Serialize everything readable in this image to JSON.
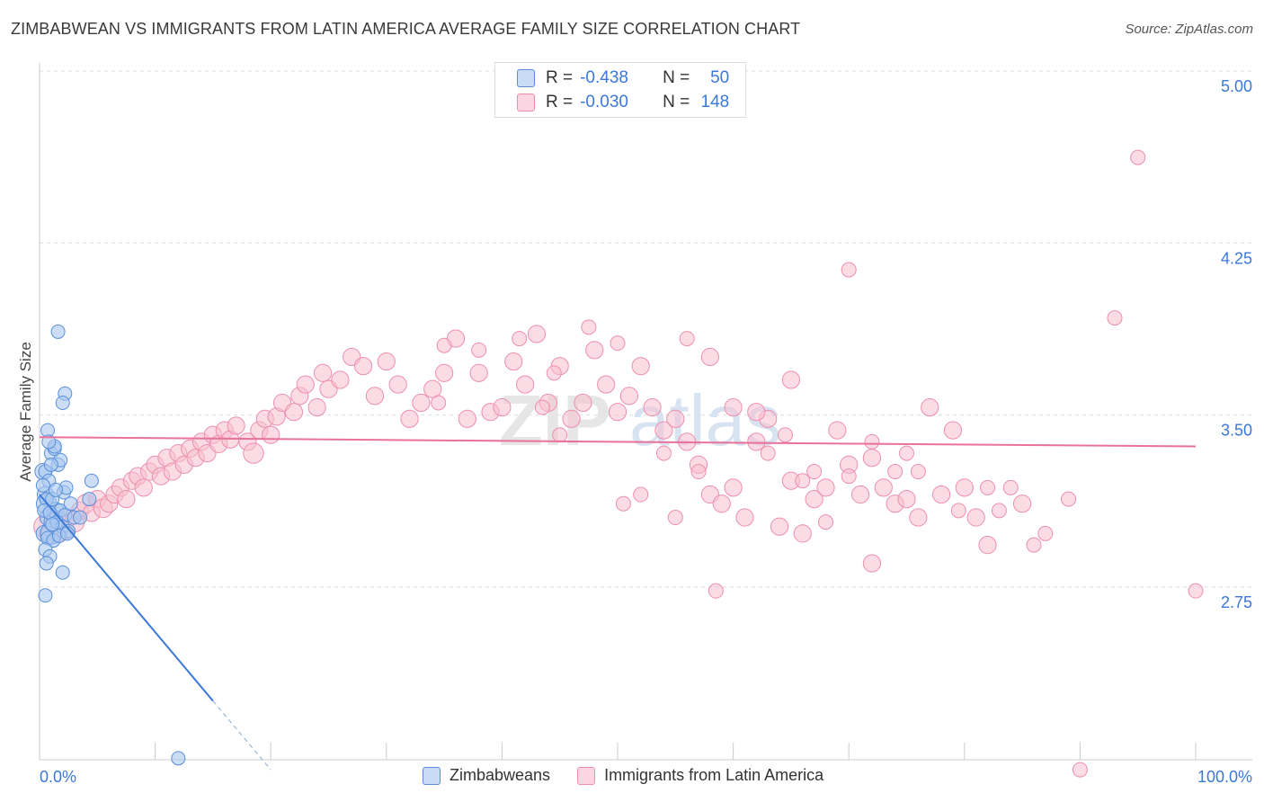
{
  "header": {
    "title": "ZIMBABWEAN VS IMMIGRANTS FROM LATIN AMERICA AVERAGE FAMILY SIZE CORRELATION CHART",
    "source": "Source: ZipAtlas.com"
  },
  "legend": {
    "series1": {
      "r_label": "R =",
      "r_value": "-0.438",
      "n_label": "N =",
      "n_value": "50"
    },
    "series2": {
      "r_label": "R =",
      "r_value": "-0.030",
      "n_label": "N =",
      "n_value": "148"
    }
  },
  "colors": {
    "blue_fill": "#a9c8f0",
    "blue_stroke": "#5a8fd8",
    "blue_line": "#3b78d8",
    "pink_fill": "#f7bfd0",
    "pink_stroke": "#ec8fae",
    "pink_line": "#e8729a",
    "tick_text": "#3b78d8"
  },
  "watermark": {
    "part1": "ZIP",
    "part2": "atlas"
  },
  "chart_data": {
    "type": "scatter",
    "title": "ZIMBABWEAN VS IMMIGRANTS FROM LATIN AMERICA AVERAGE FAMILY SIZE CORRELATION CHART",
    "xlabel": "",
    "ylabel": "Average Family Size",
    "xlim": [
      0,
      100
    ],
    "ylim": [
      2.0,
      5.1
    ],
    "x_tick_labels": [
      "0.0%",
      "100.0%"
    ],
    "y_ticks": [
      2.75,
      3.5,
      4.25,
      5.0
    ],
    "y_tick_labels": [
      "2.75",
      "3.50",
      "4.25",
      "5.00"
    ],
    "legend_position": "top-center",
    "series": [
      {
        "name": "Zimbabweans",
        "r": -0.438,
        "n": 50,
        "trend": {
          "x0": 0,
          "y0": 3.22,
          "x1": 15,
          "y1": 2.32,
          "dashed_to_x": 20,
          "dashed_to_y": 2.02
        },
        "points": [
          {
            "x": 0.3,
            "y": 3.32,
            "s": 1.2
          },
          {
            "x": 0.5,
            "y": 3.22,
            "s": 1.2
          },
          {
            "x": 0.6,
            "y": 3.18,
            "s": 1.5
          },
          {
            "x": 0.8,
            "y": 3.12,
            "s": 1.3
          },
          {
            "x": 0.4,
            "y": 3.05,
            "s": 1.2
          },
          {
            "x": 1.0,
            "y": 3.05,
            "s": 1.6
          },
          {
            "x": 1.2,
            "y": 3.1,
            "s": 1.4
          },
          {
            "x": 1.4,
            "y": 3.15,
            "s": 1.2
          },
          {
            "x": 0.7,
            "y": 3.5,
            "s": 1.0
          },
          {
            "x": 1.0,
            "y": 3.4,
            "s": 1.0
          },
          {
            "x": 1.3,
            "y": 3.42,
            "s": 1.0
          },
          {
            "x": 1.6,
            "y": 3.35,
            "s": 1.0
          },
          {
            "x": 0.5,
            "y": 3.32,
            "s": 1.0
          },
          {
            "x": 0.8,
            "y": 3.28,
            "s": 1.0
          },
          {
            "x": 0.3,
            "y": 3.26,
            "s": 1.0
          },
          {
            "x": 2.1,
            "y": 3.23,
            "s": 1.0
          },
          {
            "x": 0.6,
            "y": 3.2,
            "s": 1.0
          },
          {
            "x": 1.1,
            "y": 3.2,
            "s": 1.0
          },
          {
            "x": 1.8,
            "y": 3.15,
            "s": 1.0
          },
          {
            "x": 2.2,
            "y": 3.13,
            "s": 1.0
          },
          {
            "x": 0.4,
            "y": 3.15,
            "s": 1.0
          },
          {
            "x": 0.9,
            "y": 3.14,
            "s": 1.0
          },
          {
            "x": 1.5,
            "y": 3.1,
            "s": 1.0
          },
          {
            "x": 2.0,
            "y": 3.08,
            "s": 1.0
          },
          {
            "x": 2.5,
            "y": 3.06,
            "s": 1.0
          },
          {
            "x": 0.7,
            "y": 3.03,
            "s": 1.0
          },
          {
            "x": 1.2,
            "y": 3.02,
            "s": 1.0
          },
          {
            "x": 1.7,
            "y": 3.04,
            "s": 1.0
          },
          {
            "x": 2.4,
            "y": 3.05,
            "s": 1.0
          },
          {
            "x": 3.0,
            "y": 3.12,
            "s": 1.0
          },
          {
            "x": 0.5,
            "y": 2.98,
            "s": 1.0
          },
          {
            "x": 0.9,
            "y": 2.95,
            "s": 1.0
          },
          {
            "x": 0.6,
            "y": 2.92,
            "s": 1.0
          },
          {
            "x": 2.0,
            "y": 2.88,
            "s": 1.0
          },
          {
            "x": 0.5,
            "y": 2.78,
            "s": 1.0
          },
          {
            "x": 1.6,
            "y": 3.93,
            "s": 1.0
          },
          {
            "x": 2.2,
            "y": 3.66,
            "s": 1.0
          },
          {
            "x": 2.0,
            "y": 3.62,
            "s": 1.0
          },
          {
            "x": 1.3,
            "y": 3.43,
            "s": 1.0
          },
          {
            "x": 1.8,
            "y": 3.37,
            "s": 1.0
          },
          {
            "x": 2.3,
            "y": 3.25,
            "s": 1.0
          },
          {
            "x": 4.5,
            "y": 3.28,
            "s": 1.0
          },
          {
            "x": 4.3,
            "y": 3.2,
            "s": 1.0
          },
          {
            "x": 3.5,
            "y": 3.12,
            "s": 1.0
          },
          {
            "x": 1.0,
            "y": 3.35,
            "s": 1.0
          },
          {
            "x": 0.8,
            "y": 3.45,
            "s": 1.0
          },
          {
            "x": 1.4,
            "y": 3.24,
            "s": 1.0
          },
          {
            "x": 2.7,
            "y": 3.18,
            "s": 1.0
          },
          {
            "x": 12.0,
            "y": 2.07,
            "s": 1.0
          },
          {
            "x": 1.1,
            "y": 3.09,
            "s": 1.0
          }
        ]
      },
      {
        "name": "Immigrants from Latin America",
        "r": -0.03,
        "n": 148,
        "trend": {
          "x0": 0,
          "y0": 3.47,
          "x1": 100,
          "y1": 3.43
        },
        "points": [
          {
            "x": 0.5,
            "y": 3.08,
            "s": 1.6
          },
          {
            "x": 1.0,
            "y": 3.05,
            "s": 1.4
          },
          {
            "x": 1.5,
            "y": 3.1,
            "s": 1.5
          },
          {
            "x": 2.0,
            "y": 3.06,
            "s": 1.3
          },
          {
            "x": 2.5,
            "y": 3.12,
            "s": 1.2
          },
          {
            "x": 3.0,
            "y": 3.1,
            "s": 1.4
          },
          {
            "x": 3.5,
            "y": 3.15,
            "s": 1.2
          },
          {
            "x": 4.0,
            "y": 3.18,
            "s": 1.3
          },
          {
            "x": 4.5,
            "y": 3.14,
            "s": 1.2
          },
          {
            "x": 5.0,
            "y": 3.2,
            "s": 1.2
          },
          {
            "x": 5.5,
            "y": 3.16,
            "s": 1.3
          },
          {
            "x": 6.0,
            "y": 3.18,
            "s": 1.2
          },
          {
            "x": 6.5,
            "y": 3.22,
            "s": 1.2
          },
          {
            "x": 7.0,
            "y": 3.25,
            "s": 1.2
          },
          {
            "x": 7.5,
            "y": 3.2,
            "s": 1.2
          },
          {
            "x": 8.0,
            "y": 3.28,
            "s": 1.2
          },
          {
            "x": 8.5,
            "y": 3.3,
            "s": 1.2
          },
          {
            "x": 9.0,
            "y": 3.25,
            "s": 1.2
          },
          {
            "x": 9.5,
            "y": 3.32,
            "s": 1.2
          },
          {
            "x": 10.0,
            "y": 3.35,
            "s": 1.2
          },
          {
            "x": 10.5,
            "y": 3.3,
            "s": 1.2
          },
          {
            "x": 11.0,
            "y": 3.38,
            "s": 1.2
          },
          {
            "x": 11.5,
            "y": 3.32,
            "s": 1.2
          },
          {
            "x": 12.0,
            "y": 3.4,
            "s": 1.2
          },
          {
            "x": 12.5,
            "y": 3.35,
            "s": 1.2
          },
          {
            "x": 13.0,
            "y": 3.42,
            "s": 1.2
          },
          {
            "x": 13.5,
            "y": 3.38,
            "s": 1.2
          },
          {
            "x": 14.0,
            "y": 3.45,
            "s": 1.2
          },
          {
            "x": 14.5,
            "y": 3.4,
            "s": 1.2
          },
          {
            "x": 15.0,
            "y": 3.48,
            "s": 1.2
          },
          {
            "x": 15.5,
            "y": 3.44,
            "s": 1.2
          },
          {
            "x": 16.0,
            "y": 3.5,
            "s": 1.2
          },
          {
            "x": 16.5,
            "y": 3.46,
            "s": 1.2
          },
          {
            "x": 17.0,
            "y": 3.52,
            "s": 1.2
          },
          {
            "x": 18.0,
            "y": 3.45,
            "s": 1.2
          },
          {
            "x": 18.5,
            "y": 3.4,
            "s": 1.4
          },
          {
            "x": 19.0,
            "y": 3.5,
            "s": 1.2
          },
          {
            "x": 19.5,
            "y": 3.55,
            "s": 1.2
          },
          {
            "x": 20.0,
            "y": 3.48,
            "s": 1.2
          },
          {
            "x": 20.5,
            "y": 3.56,
            "s": 1.2
          },
          {
            "x": 21.0,
            "y": 3.62,
            "s": 1.2
          },
          {
            "x": 22.0,
            "y": 3.58,
            "s": 1.2
          },
          {
            "x": 22.5,
            "y": 3.65,
            "s": 1.2
          },
          {
            "x": 23.0,
            "y": 3.7,
            "s": 1.2
          },
          {
            "x": 24.0,
            "y": 3.6,
            "s": 1.2
          },
          {
            "x": 24.5,
            "y": 3.75,
            "s": 1.2
          },
          {
            "x": 25.0,
            "y": 3.68,
            "s": 1.2
          },
          {
            "x": 26.0,
            "y": 3.72,
            "s": 1.2
          },
          {
            "x": 27.0,
            "y": 3.82,
            "s": 1.2
          },
          {
            "x": 28.0,
            "y": 3.78,
            "s": 1.2
          },
          {
            "x": 29.0,
            "y": 3.65,
            "s": 1.2
          },
          {
            "x": 30.0,
            "y": 3.8,
            "s": 1.2
          },
          {
            "x": 31.0,
            "y": 3.7,
            "s": 1.2
          },
          {
            "x": 32.0,
            "y": 3.55,
            "s": 1.2
          },
          {
            "x": 33.0,
            "y": 3.62,
            "s": 1.2
          },
          {
            "x": 34.0,
            "y": 3.68,
            "s": 1.2
          },
          {
            "x": 35.0,
            "y": 3.75,
            "s": 1.2
          },
          {
            "x": 36.0,
            "y": 3.9,
            "s": 1.2
          },
          {
            "x": 37.0,
            "y": 3.55,
            "s": 1.2
          },
          {
            "x": 38.0,
            "y": 3.75,
            "s": 1.2
          },
          {
            "x": 39.0,
            "y": 3.58,
            "s": 1.2
          },
          {
            "x": 40.0,
            "y": 3.6,
            "s": 1.2
          },
          {
            "x": 41.0,
            "y": 3.8,
            "s": 1.2
          },
          {
            "x": 42.0,
            "y": 3.7,
            "s": 1.2
          },
          {
            "x": 43.0,
            "y": 3.92,
            "s": 1.2
          },
          {
            "x": 44.0,
            "y": 3.62,
            "s": 1.2
          },
          {
            "x": 45.0,
            "y": 3.78,
            "s": 1.2
          },
          {
            "x": 46.0,
            "y": 3.55,
            "s": 1.2
          },
          {
            "x": 47.0,
            "y": 3.62,
            "s": 1.2
          },
          {
            "x": 48.0,
            "y": 3.85,
            "s": 1.2
          },
          {
            "x": 49.0,
            "y": 3.7,
            "s": 1.2
          },
          {
            "x": 50.0,
            "y": 3.58,
            "s": 1.2
          },
          {
            "x": 51.0,
            "y": 3.65,
            "s": 1.2
          },
          {
            "x": 52.0,
            "y": 3.78,
            "s": 1.2
          },
          {
            "x": 53.0,
            "y": 3.6,
            "s": 1.2
          },
          {
            "x": 54.0,
            "y": 3.5,
            "s": 1.2
          },
          {
            "x": 55.0,
            "y": 3.55,
            "s": 1.2
          },
          {
            "x": 56.0,
            "y": 3.45,
            "s": 1.2
          },
          {
            "x": 57.0,
            "y": 3.35,
            "s": 1.2
          },
          {
            "x": 58.0,
            "y": 3.22,
            "s": 1.2
          },
          {
            "x": 59.0,
            "y": 3.18,
            "s": 1.2
          },
          {
            "x": 60.0,
            "y": 3.25,
            "s": 1.2
          },
          {
            "x": 61.0,
            "y": 3.12,
            "s": 1.2
          },
          {
            "x": 62.0,
            "y": 3.45,
            "s": 1.2
          },
          {
            "x": 63.0,
            "y": 3.55,
            "s": 1.2
          },
          {
            "x": 64.0,
            "y": 3.08,
            "s": 1.2
          },
          {
            "x": 65.0,
            "y": 3.28,
            "s": 1.2
          },
          {
            "x": 66.0,
            "y": 3.05,
            "s": 1.2
          },
          {
            "x": 67.0,
            "y": 3.2,
            "s": 1.2
          },
          {
            "x": 68.0,
            "y": 3.25,
            "s": 1.2
          },
          {
            "x": 69.0,
            "y": 3.5,
            "s": 1.2
          },
          {
            "x": 70.0,
            "y": 3.35,
            "s": 1.2
          },
          {
            "x": 71.0,
            "y": 3.22,
            "s": 1.2
          },
          {
            "x": 72.0,
            "y": 2.92,
            "s": 1.2
          },
          {
            "x": 73.0,
            "y": 3.25,
            "s": 1.2
          },
          {
            "x": 74.0,
            "y": 3.18,
            "s": 1.2
          },
          {
            "x": 75.0,
            "y": 3.2,
            "s": 1.2
          },
          {
            "x": 76.0,
            "y": 3.12,
            "s": 1.2
          },
          {
            "x": 78.0,
            "y": 3.22,
            "s": 1.2
          },
          {
            "x": 80.0,
            "y": 3.25,
            "s": 1.2
          },
          {
            "x": 81.0,
            "y": 3.12,
            "s": 1.2
          },
          {
            "x": 82.0,
            "y": 3.0,
            "s": 1.2
          },
          {
            "x": 85.0,
            "y": 3.18,
            "s": 1.2
          },
          {
            "x": 58.0,
            "y": 3.82,
            "s": 1.2
          },
          {
            "x": 60.0,
            "y": 3.6,
            "s": 1.2
          },
          {
            "x": 62.0,
            "y": 3.58,
            "s": 1.2
          },
          {
            "x": 65.0,
            "y": 3.72,
            "s": 1.2
          },
          {
            "x": 77.0,
            "y": 3.6,
            "s": 1.2
          },
          {
            "x": 72.0,
            "y": 3.38,
            "s": 1.2
          },
          {
            "x": 79.0,
            "y": 3.5,
            "s": 1.2
          },
          {
            "x": 93.0,
            "y": 3.99,
            "s": 1.0
          },
          {
            "x": 95.0,
            "y": 4.69,
            "s": 1.0
          },
          {
            "x": 100.0,
            "y": 2.8,
            "s": 1.0
          },
          {
            "x": 70.0,
            "y": 4.2,
            "s": 1.0
          },
          {
            "x": 56.0,
            "y": 3.9,
            "s": 1.0
          },
          {
            "x": 50.0,
            "y": 3.88,
            "s": 1.0
          },
          {
            "x": 38.0,
            "y": 3.85,
            "s": 1.0
          },
          {
            "x": 35.0,
            "y": 3.87,
            "s": 1.0
          },
          {
            "x": 50.5,
            "y": 3.18,
            "s": 1.0
          },
          {
            "x": 52.0,
            "y": 3.22,
            "s": 1.0
          },
          {
            "x": 57.0,
            "y": 3.32,
            "s": 1.0
          },
          {
            "x": 54.0,
            "y": 3.4,
            "s": 1.0
          },
          {
            "x": 58.5,
            "y": 2.8,
            "s": 1.0
          },
          {
            "x": 55.0,
            "y": 3.12,
            "s": 1.0
          },
          {
            "x": 64.5,
            "y": 3.48,
            "s": 1.0
          },
          {
            "x": 67.0,
            "y": 3.32,
            "s": 1.0
          },
          {
            "x": 74.0,
            "y": 3.32,
            "s": 1.0
          },
          {
            "x": 66.0,
            "y": 3.28,
            "s": 1.0
          },
          {
            "x": 70.0,
            "y": 3.3,
            "s": 1.0
          },
          {
            "x": 63.0,
            "y": 3.4,
            "s": 1.0
          },
          {
            "x": 76.0,
            "y": 3.32,
            "s": 1.0
          },
          {
            "x": 79.5,
            "y": 3.15,
            "s": 1.0
          },
          {
            "x": 84.0,
            "y": 3.25,
            "s": 1.0
          },
          {
            "x": 87.0,
            "y": 3.05,
            "s": 1.0
          },
          {
            "x": 89.0,
            "y": 3.2,
            "s": 1.0
          },
          {
            "x": 86.0,
            "y": 3.0,
            "s": 1.0
          },
          {
            "x": 83.0,
            "y": 3.15,
            "s": 1.0
          },
          {
            "x": 82.0,
            "y": 3.25,
            "s": 1.0
          },
          {
            "x": 90.0,
            "y": 2.02,
            "s": 1.0
          },
          {
            "x": 68.0,
            "y": 3.1,
            "s": 1.0
          },
          {
            "x": 72.0,
            "y": 3.45,
            "s": 1.0
          },
          {
            "x": 75.0,
            "y": 3.4,
            "s": 1.0
          },
          {
            "x": 45.0,
            "y": 3.48,
            "s": 1.0
          },
          {
            "x": 43.5,
            "y": 3.6,
            "s": 1.0
          },
          {
            "x": 47.5,
            "y": 3.95,
            "s": 1.0
          },
          {
            "x": 44.5,
            "y": 3.75,
            "s": 1.0
          },
          {
            "x": 41.5,
            "y": 3.9,
            "s": 1.0
          },
          {
            "x": 34.5,
            "y": 3.62,
            "s": 1.0
          }
        ]
      }
    ]
  }
}
